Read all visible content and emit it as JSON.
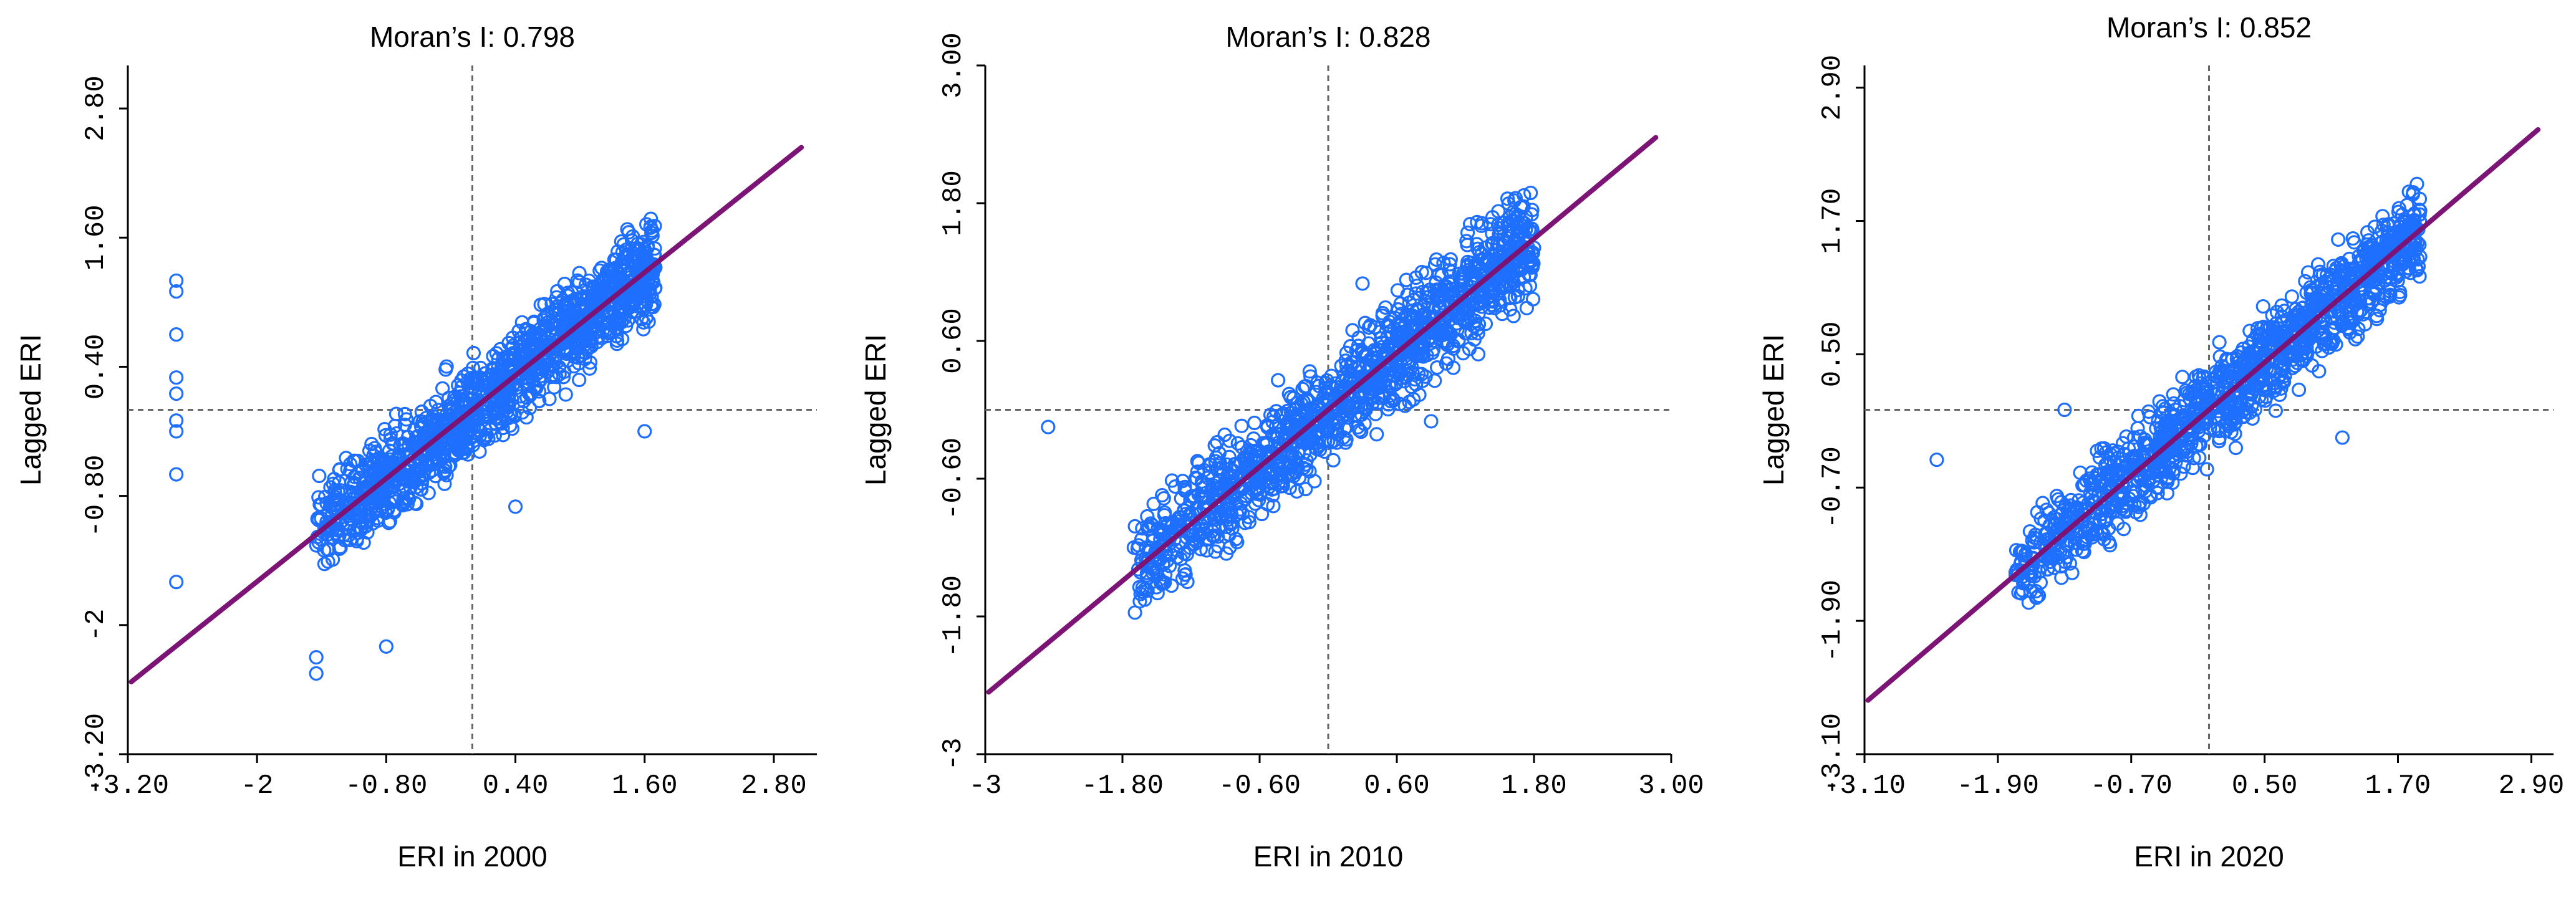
{
  "chart_data": [
    {
      "type": "scatter",
      "title": "Moran’s I: 0.798",
      "xlabel": "ERI in 2000",
      "ylabel": "Lagged ERI",
      "xlim": [
        -3.2,
        3.2
      ],
      "ylim": [
        -3.2,
        3.2
      ],
      "x_ticks": [
        -3.2,
        -2,
        -0.8,
        0.4,
        1.6,
        2.8
      ],
      "x_tick_labels": [
        "-3.20",
        "-2",
        "-0.80",
        "0.40",
        "1.60",
        "2.80"
      ],
      "y_ticks": [
        -3.2,
        -2,
        -0.8,
        0.4,
        1.6,
        2.8
      ],
      "y_tick_labels": [
        "-3.20",
        "-2",
        "-0.80",
        "0.40",
        "1.60",
        "2.80"
      ],
      "mean_x": 0.0,
      "mean_y": 0.0,
      "fit_line": {
        "slope": 0.798,
        "intercept": 0.0,
        "color": "#7b1474"
      },
      "point_color": "#1f6fff",
      "cloud": {
        "x_min": -1.45,
        "x_max": 1.7,
        "spread": 0.38,
        "count": 1300,
        "seed": 11
      },
      "outliers": [
        [
          -2.75,
          1.2
        ],
        [
          -2.75,
          1.1
        ],
        [
          -2.75,
          0.7
        ],
        [
          -2.75,
          0.3
        ],
        [
          -2.75,
          0.15
        ],
        [
          -2.75,
          -0.1
        ],
        [
          -2.75,
          -0.2
        ],
        [
          -2.75,
          -0.6
        ],
        [
          -2.75,
          -1.6
        ],
        [
          -1.45,
          -2.3
        ],
        [
          -1.45,
          -2.45
        ],
        [
          -0.8,
          -2.2
        ],
        [
          0.4,
          -0.9
        ],
        [
          1.6,
          -0.2
        ]
      ]
    },
    {
      "type": "scatter",
      "title": "Moran’s I: 0.828",
      "xlabel": "ERI in 2010",
      "ylabel": "Lagged ERI",
      "xlim": [
        -3.0,
        3.0
      ],
      "ylim": [
        -3.0,
        3.0
      ],
      "x_ticks": [
        -3.0,
        -1.8,
        -0.6,
        0.6,
        1.8,
        3.0
      ],
      "x_tick_labels": [
        "-3",
        "-1.80",
        "-0.60",
        "0.60",
        "1.80",
        "3.00"
      ],
      "y_ticks": [
        -3.0,
        -1.8,
        -0.6,
        0.6,
        1.8,
        3.0
      ],
      "y_tick_labels": [
        "-3",
        "-1.80",
        "-0.60",
        "0.60",
        "1.80",
        "3.00"
      ],
      "mean_x": 0.0,
      "mean_y": 0.0,
      "fit_line": {
        "slope": 0.828,
        "intercept": 0.0,
        "color": "#7b1474"
      },
      "point_color": "#1f6fff",
      "cloud": {
        "x_min": -1.7,
        "x_max": 1.8,
        "spread": 0.4,
        "count": 1300,
        "seed": 23
      },
      "outliers": [
        [
          -2.45,
          -0.15
        ],
        [
          -1.7,
          -1.2
        ],
        [
          0.3,
          1.1
        ],
        [
          0.9,
          -0.1
        ]
      ]
    },
    {
      "type": "scatter",
      "title": "Moran’s I: 0.852",
      "xlabel": "ERI in 2020",
      "ylabel": "Lagged ERI",
      "xlim": [
        -3.1,
        3.1
      ],
      "ylim": [
        -3.1,
        3.1
      ],
      "x_ticks": [
        -3.1,
        -1.9,
        -0.7,
        0.5,
        1.7,
        2.9
      ],
      "x_tick_labels": [
        "-3.10",
        "-1.90",
        "-0.70",
        "0.50",
        "1.70",
        "2.90"
      ],
      "y_ticks": [
        -3.1,
        -1.9,
        -0.7,
        0.5,
        1.7,
        2.9
      ],
      "y_tick_labels": [
        "-3.10",
        "-1.90",
        "-0.70",
        "0.50",
        "1.70",
        "2.90"
      ],
      "mean_x": 0.0,
      "mean_y": 0.0,
      "fit_line": {
        "slope": 0.852,
        "intercept": 0.0,
        "color": "#7b1474"
      },
      "point_color": "#1f6fff",
      "cloud": {
        "x_min": -1.75,
        "x_max": 1.9,
        "spread": 0.36,
        "count": 1300,
        "seed": 37
      },
      "outliers": [
        [
          -2.45,
          -0.45
        ],
        [
          -1.3,
          0.0
        ],
        [
          1.2,
          -0.25
        ],
        [
          0.6,
          0.2
        ]
      ]
    }
  ]
}
